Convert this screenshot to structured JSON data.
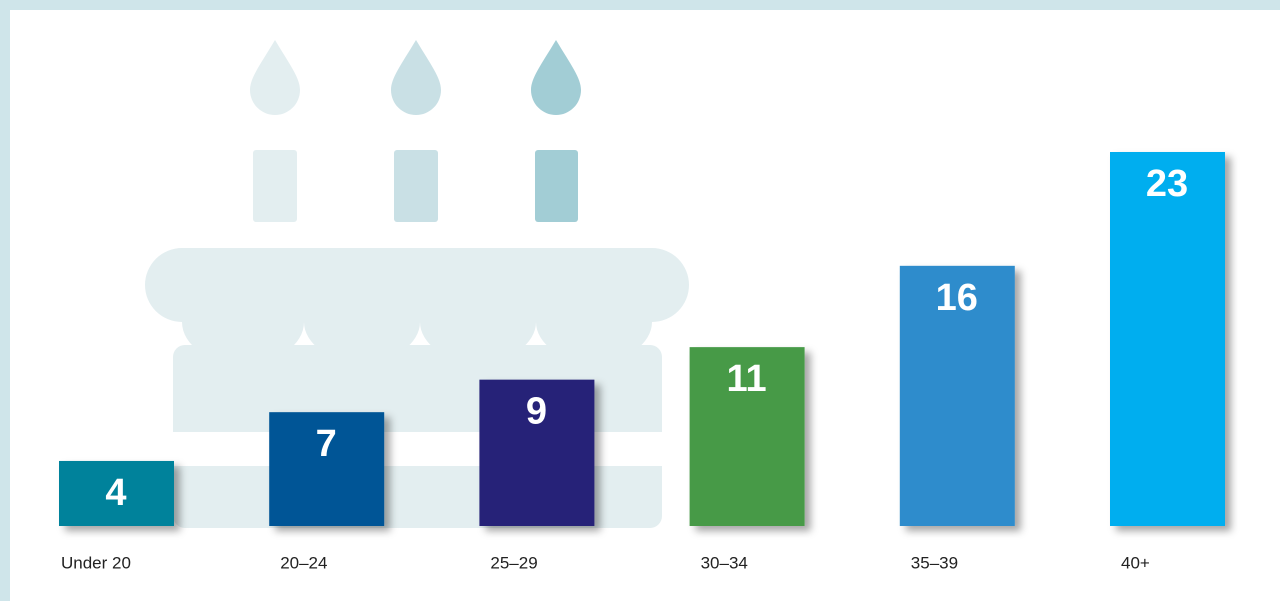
{
  "chart_data": {
    "type": "bar",
    "categories": [
      "Under 20",
      "20–24",
      "25–29",
      "30–34",
      "35–39",
      "40+"
    ],
    "values": [
      4,
      7,
      9,
      11,
      16,
      23
    ],
    "colors": [
      "#00829b",
      "#005596",
      "#262178",
      "#469a47",
      "#2f8ccc",
      "#00aeef"
    ]
  }
}
